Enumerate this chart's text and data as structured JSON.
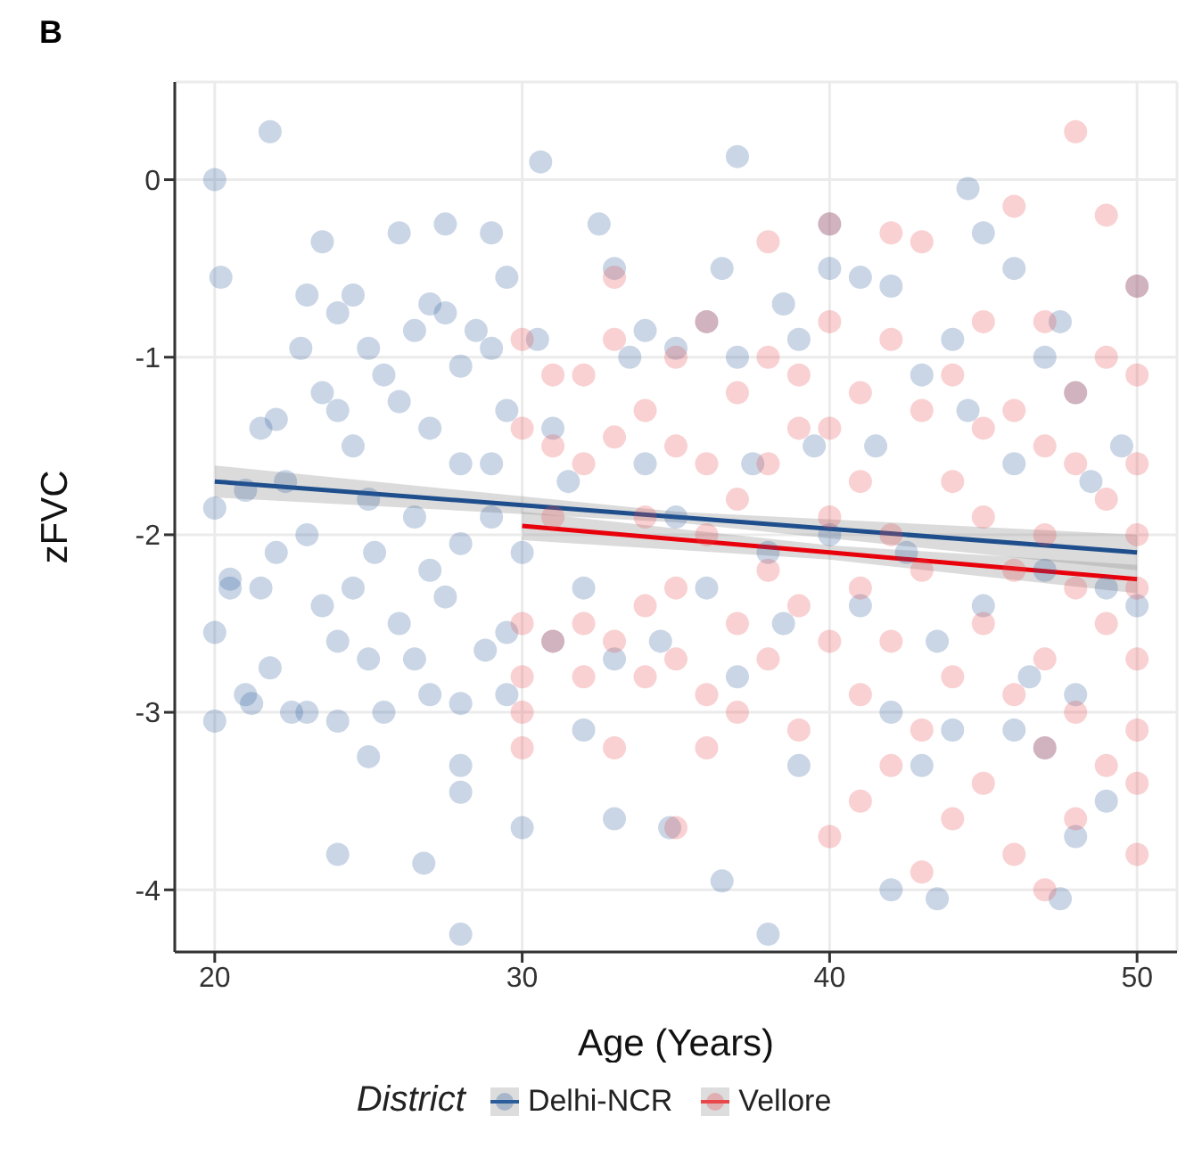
{
  "chart_data": {
    "type": "scatter",
    "title": "B",
    "xlabel": "Age (Years)",
    "ylabel": "zFVC",
    "legend_title": "District",
    "xlim": [
      18.7,
      51.3
    ],
    "ylim": [
      -4.35,
      0.55
    ],
    "xticks": [
      20,
      30,
      40,
      50
    ],
    "yticks": [
      -4,
      -3,
      -2,
      -1,
      0
    ],
    "grid": true,
    "legend": "bottom",
    "series": [
      {
        "name": "Delhi-NCR",
        "marker": "circle",
        "color": "#2b5c9c",
        "x": [
          20,
          21.8,
          20.2,
          37,
          30.6,
          28,
          38,
          26.8,
          24,
          50,
          49,
          47.5,
          43.5,
          42,
          36.5,
          34.8,
          33,
          30,
          28,
          28,
          25,
          20,
          44.5,
          45,
          40,
          20,
          20.5,
          20,
          21,
          21.5,
          20.5,
          22,
          21.5,
          22.3,
          21,
          22,
          21.2,
          21.8,
          22.8,
          23,
          23.5,
          24,
          24.5,
          25,
          23.5,
          24,
          24.5,
          25,
          23,
          23.5,
          24,
          24.5,
          25,
          23,
          24,
          22.5,
          25.5,
          25.2,
          26,
          26.5,
          27,
          27.5,
          28,
          26,
          27,
          28,
          26.5,
          27,
          27.5,
          28,
          26,
          26.5,
          27,
          28,
          25.5,
          27.5,
          28.5,
          29,
          29,
          29.5,
          29,
          29.5,
          29,
          30,
          29.5,
          28.8,
          29.5,
          30.5,
          31,
          31.5,
          32,
          31,
          32.5,
          33,
          33.5,
          34,
          32,
          34.5,
          35,
          35,
          34,
          33,
          36,
          36.5,
          37,
          37.5,
          38,
          36,
          38.5,
          39,
          39.5,
          40,
          37,
          39,
          40,
          38.5,
          41,
          42,
          43,
          41.5,
          42.5,
          41,
          43.5,
          44,
          44.5,
          42,
          44,
          43,
          45,
          46,
          47,
          47.5,
          48,
          46,
          48.5,
          47,
          49,
          46.5,
          48,
          49.5,
          46,
          48,
          47,
          50
        ],
        "values": [
          0,
          0.27,
          -0.55,
          0.13,
          0.1,
          -4.25,
          -4.25,
          -3.85,
          -3.8,
          -0.6,
          -3.5,
          -4.05,
          -4.05,
          -4,
          -3.95,
          -3.65,
          -3.6,
          -3.65,
          -3.45,
          -3.3,
          -3.25,
          -3.05,
          -0.05,
          -0.3,
          -0.25,
          -1.85,
          -2.3,
          -2.55,
          -2.9,
          -2.3,
          -2.25,
          -1.35,
          -1.4,
          -1.7,
          -1.75,
          -2.1,
          -2.95,
          -2.75,
          -0.95,
          -0.65,
          -0.35,
          -0.75,
          -0.65,
          -0.95,
          -1.2,
          -1.3,
          -1.5,
          -1.8,
          -2,
          -2.4,
          -2.6,
          -2.3,
          -2.7,
          -3,
          -3.05,
          -3,
          -1.1,
          -2.1,
          -0.3,
          -0.85,
          -0.7,
          -0.75,
          -1.05,
          -1.25,
          -1.4,
          -1.6,
          -1.9,
          -2.2,
          -2.35,
          -2.05,
          -2.5,
          -2.7,
          -2.9,
          -2.95,
          -3,
          -0.25,
          -0.85,
          -1.9,
          -0.3,
          -0.55,
          -0.95,
          -1.3,
          -1.6,
          -2.1,
          -2.55,
          -2.65,
          -2.9,
          -0.9,
          -1.4,
          -1.7,
          -2.3,
          -2.6,
          -0.25,
          -0.5,
          -1,
          -1.6,
          -3.1,
          -2.6,
          -0.95,
          -1.9,
          -0.85,
          -2.7,
          -0.8,
          -0.5,
          -1,
          -1.6,
          -2.1,
          -2.3,
          -2.5,
          -0.9,
          -1.5,
          -2,
          -2.8,
          -3.3,
          -0.5,
          -0.7,
          -0.55,
          -0.6,
          -1.1,
          -1.5,
          -2.1,
          -2.4,
          -2.6,
          -0.9,
          -1.3,
          -3,
          -3.1,
          -3.3,
          -2.4,
          -0.5,
          -1,
          -0.8,
          -1.2,
          -1.6,
          -1.7,
          -2.2,
          -2.3,
          -2.8,
          -2.9,
          -1.5,
          -3.1,
          -3.7,
          -3.2,
          -2.4
        ]
      },
      {
        "name": "Vellore",
        "marker": "circle",
        "color": "#e8474b",
        "x": [
          30,
          30,
          30,
          30,
          30,
          30,
          31,
          31,
          31,
          31,
          32,
          32,
          32,
          32,
          33,
          33,
          33,
          33,
          33,
          34,
          34,
          34,
          34,
          35,
          35,
          35,
          35,
          35,
          36,
          36,
          36,
          36,
          36,
          37,
          37,
          37,
          37,
          38,
          38,
          38,
          38,
          38,
          39,
          39,
          39,
          39,
          40,
          40,
          40,
          40,
          40,
          40,
          41,
          41,
          41,
          41,
          41,
          42,
          42,
          42,
          42,
          42,
          43,
          43,
          43,
          43,
          43,
          44,
          44,
          44,
          44,
          45,
          45,
          45,
          45,
          45,
          46,
          46,
          46,
          46,
          46,
          47,
          47,
          47,
          47,
          47,
          47,
          48,
          48,
          48,
          48,
          48,
          48,
          49,
          49,
          49,
          49,
          49,
          50,
          50,
          50,
          50,
          50,
          50,
          50,
          50,
          50
        ],
        "values": [
          -0.9,
          -1.4,
          -2.5,
          -2.8,
          -3,
          -3.2,
          -1.1,
          -1.5,
          -1.9,
          -2.6,
          -1.1,
          -1.6,
          -2.5,
          -2.8,
          -0.55,
          -0.9,
          -1.45,
          -2.6,
          -3.2,
          -1.3,
          -1.9,
          -2.4,
          -2.8,
          -1,
          -1.5,
          -2.3,
          -2.7,
          -3.65,
          -0.8,
          -1.6,
          -2,
          -2.9,
          -3.2,
          -1.2,
          -1.8,
          -2.5,
          -3,
          -0.35,
          -1,
          -1.6,
          -2.2,
          -2.7,
          -1.1,
          -1.4,
          -2.4,
          -3.1,
          -0.25,
          -0.8,
          -1.4,
          -1.9,
          -2.6,
          -3.7,
          -1.2,
          -1.7,
          -2.3,
          -2.9,
          -3.5,
          -0.3,
          -0.9,
          -2,
          -2.6,
          -3.3,
          -0.35,
          -1.3,
          -2.2,
          -3.1,
          -3.9,
          -1.1,
          -1.7,
          -2.8,
          -3.6,
          -0.8,
          -1.4,
          -1.9,
          -2.5,
          -3.4,
          -0.15,
          -1.3,
          -2.2,
          -2.9,
          -3.8,
          -0.8,
          -1.5,
          -2,
          -2.7,
          -3.2,
          -4,
          0.27,
          -1.2,
          -1.6,
          -2.3,
          -3,
          -3.6,
          -0.2,
          -1,
          -1.8,
          -2.5,
          -3.3,
          -0.6,
          -1.1,
          -1.6,
          -2,
          -2.3,
          -2.7,
          -3.1,
          -3.4,
          -3.8
        ]
      },
      {
        "type": "line",
        "marker": "none",
        "color": "#1f4e8c",
        "x": [
          20,
          35,
          50
        ],
        "values": [
          -1.7,
          -1.9,
          -2.1
        ],
        "lower": [
          -1.79,
          -1.93,
          -2.2
        ],
        "upper": [
          -1.61,
          -1.87,
          -2
        ]
      },
      {
        "type": "line",
        "marker": "none",
        "color": "#e8000b",
        "x": [
          30,
          40,
          50
        ],
        "values": [
          -1.95,
          -2.1,
          -2.25
        ],
        "lower": [
          -2.03,
          -2.14,
          -2.33
        ],
        "upper": [
          -1.87,
          -2.06,
          -2.17
        ]
      }
    ]
  }
}
